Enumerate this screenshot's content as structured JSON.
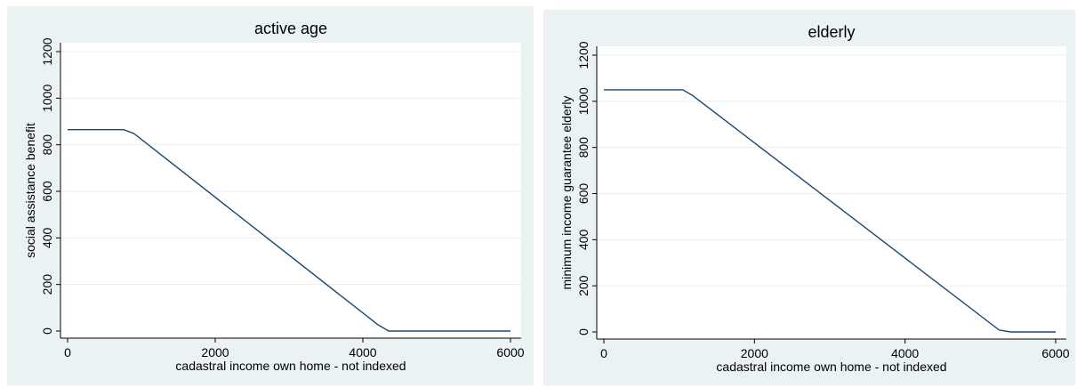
{
  "chart_data": [
    {
      "type": "line",
      "title": "active age",
      "xlabel": "cadastral income own home - not indexed",
      "ylabel": "social assistance benefit",
      "xlim": [
        0,
        6000
      ],
      "ylim": [
        0,
        1200
      ],
      "xticks": [
        0,
        2000,
        4000,
        6000
      ],
      "yticks": [
        0,
        200,
        400,
        600,
        800,
        1000,
        1200
      ],
      "grid": true,
      "series": [
        {
          "x": [
            0,
            760,
            900,
            4200,
            4350,
            6000
          ],
          "y": [
            865,
            865,
            848,
            28,
            0,
            0
          ]
        }
      ]
    },
    {
      "type": "line",
      "title": "elderly",
      "xlabel": "cadastral income own home - not indexed",
      "ylabel": "minimum income guarantee elderly",
      "xlim": [
        0,
        6000
      ],
      "ylim": [
        0,
        1200
      ],
      "xticks": [
        0,
        2000,
        4000,
        6000
      ],
      "yticks": [
        0,
        200,
        400,
        600,
        800,
        1000,
        1200
      ],
      "grid": true,
      "series": [
        {
          "x": [
            0,
            1050,
            1180,
            5250,
            5400,
            6000
          ],
          "y": [
            1050,
            1050,
            1025,
            8,
            0,
            0
          ]
        }
      ]
    }
  ],
  "colors": {
    "background": "#eaf2f3",
    "plot": "#ffffff",
    "grid": "#e9eef0",
    "line": "#1a476f"
  }
}
